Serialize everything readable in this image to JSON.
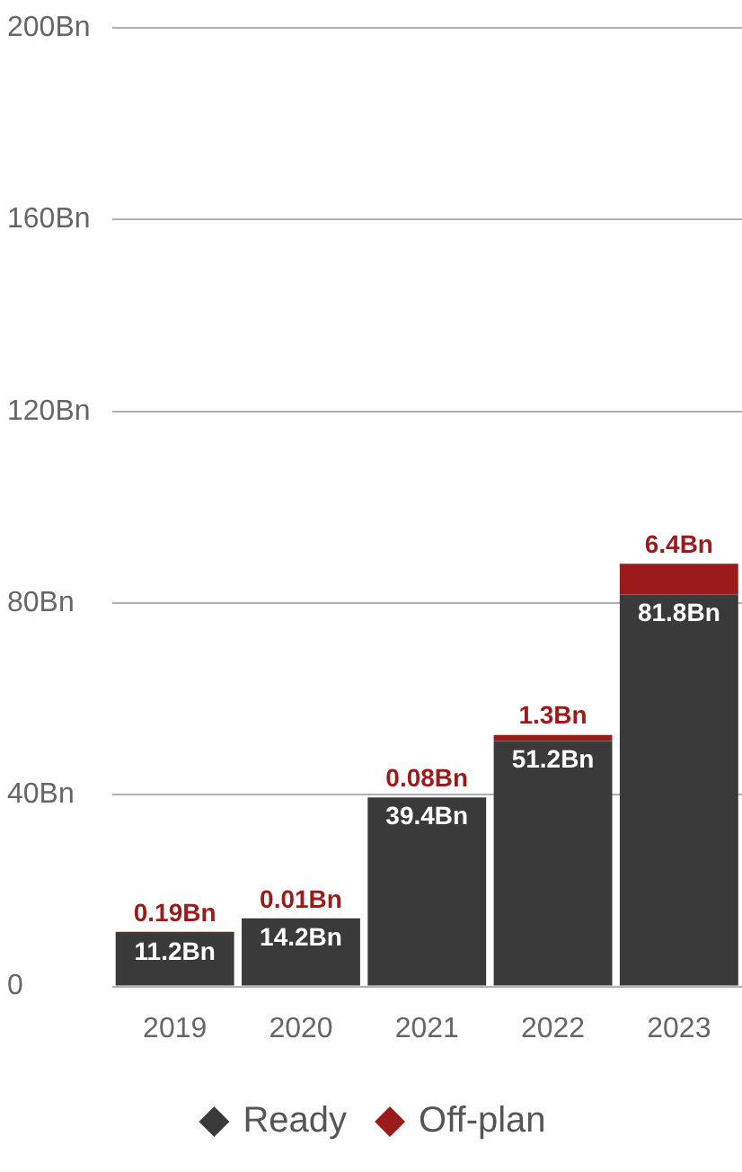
{
  "chart_data": {
    "type": "bar",
    "stacked": true,
    "categories": [
      "2019",
      "2020",
      "2021",
      "2022",
      "2023"
    ],
    "series": [
      {
        "name": "Ready",
        "color": "#3a3a3a",
        "values": [
          11.2,
          14.2,
          39.4,
          51.2,
          81.8
        ],
        "value_labels": [
          "11.2Bn",
          "14.2Bn",
          "39.4Bn",
          "51.2Bn",
          "81.8Bn"
        ]
      },
      {
        "name": "Off-plan",
        "color": "#9b1b1b",
        "values": [
          0.19,
          0.01,
          0.08,
          1.3,
          6.4
        ],
        "value_labels": [
          "0.19Bn",
          "0.01Bn",
          "0.08Bn",
          "1.3Bn",
          "6.4Bn"
        ]
      }
    ],
    "ylim": [
      0,
      200
    ],
    "yticks": [
      0,
      {
        "value": 40,
        "label": "40Bn"
      },
      {
        "value": 80,
        "label": "80Bn"
      },
      {
        "value": 120,
        "label": "120Bn"
      },
      {
        "value": 160,
        "label": "160Bn"
      },
      {
        "value": 200,
        "label": "200Bn"
      }
    ],
    "grid": "y",
    "legend": "bottom",
    "marker": "diamond"
  }
}
